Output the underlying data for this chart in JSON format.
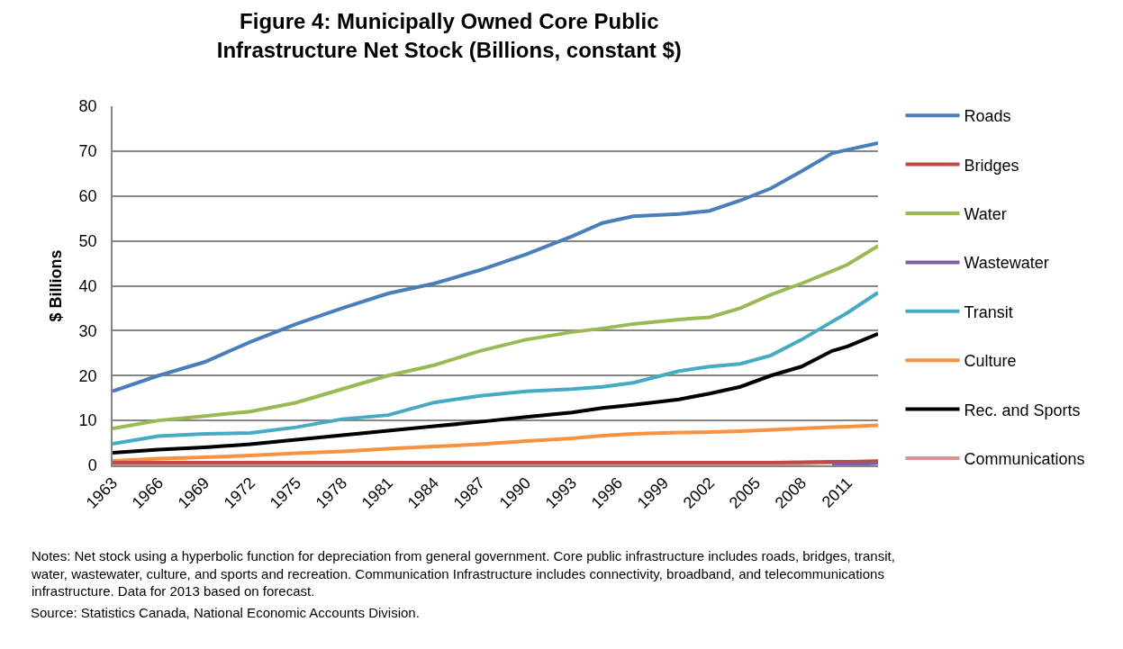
{
  "chart_data": {
    "type": "line",
    "title": "Figure 4: Municipally Owned Core Public\nInfrastructure Net Stock (Billions, constant $)",
    "ylabel": "$ Billions",
    "x": [
      1963,
      1966,
      1969,
      1972,
      1975,
      1978,
      1981,
      1984,
      1987,
      1990,
      1993,
      1995,
      1997,
      2000,
      2002,
      2004,
      2006,
      2008,
      2010,
      2011,
      2013
    ],
    "series": [
      {
        "name": "Roads",
        "color": "#4a7ebb",
        "values": [
          16.5,
          20,
          23,
          27.5,
          31.5,
          35,
          38.3,
          40.5,
          43.5,
          47,
          51,
          54,
          55.5,
          56,
          56.7,
          59,
          61.7,
          65.5,
          69.5,
          70.3,
          71.8
        ]
      },
      {
        "name": "Bridges",
        "color": "#be4b48",
        "values": [
          0.6,
          0.6,
          0.6,
          0.6,
          0.6,
          0.6,
          0.6,
          0.6,
          0.6,
          0.6,
          0.6,
          0.6,
          0.6,
          0.6,
          0.6,
          0.6,
          0.6,
          0.7,
          0.8,
          0.8,
          0.9
        ]
      },
      {
        "name": "Water",
        "color": "#98b954",
        "values": [
          8.2,
          10,
          11,
          12,
          14,
          17,
          20,
          22.3,
          25.5,
          28,
          29.7,
          30.5,
          31.5,
          32.5,
          33,
          35,
          38,
          40.5,
          43.3,
          44.7,
          48.9
        ]
      },
      {
        "name": "Wastewater",
        "color": "#7d60a0",
        "values": [
          null,
          null,
          null,
          null,
          null,
          null,
          null,
          null,
          null,
          null,
          null,
          null,
          null,
          null,
          null,
          null,
          null,
          null,
          0.1,
          0.2,
          0.5
        ]
      },
      {
        "name": "Transit",
        "color": "#46aac5",
        "values": [
          4.8,
          6.5,
          7,
          7.2,
          8.5,
          10.3,
          11.2,
          14,
          15.5,
          16.5,
          17,
          17.5,
          18.4,
          21,
          22,
          22.6,
          24.5,
          28,
          32,
          34,
          38.5
        ]
      },
      {
        "name": "Culture",
        "color": "#f69240",
        "values": [
          1,
          1.5,
          1.8,
          2.2,
          2.7,
          3.1,
          3.7,
          4.2,
          4.7,
          5.4,
          6,
          6.6,
          7,
          7.3,
          7.4,
          7.6,
          7.9,
          8.2,
          8.5,
          8.6,
          8.9
        ]
      },
      {
        "name": "Rec. and Sports",
        "color": "#000000",
        "values": [
          2.8,
          3.5,
          4,
          4.7,
          5.7,
          6.7,
          7.7,
          8.7,
          9.7,
          10.8,
          11.8,
          12.8,
          13.5,
          14.7,
          16,
          17.5,
          20,
          22,
          25.5,
          26.5,
          29.3
        ]
      },
      {
        "name": "Communications",
        "color": "#d99694",
        "values": [
          0.2,
          0.2,
          0.2,
          0.2,
          0.2,
          0.2,
          0.2,
          0.2,
          0.2,
          0.2,
          0.2,
          0.2,
          0.2,
          0.2,
          0.2,
          0.2,
          0.3,
          0.4,
          0.6,
          0.7,
          1
        ]
      }
    ],
    "xlim": [
      1963,
      2013
    ],
    "xticks": [
      1963,
      1966,
      1969,
      1972,
      1975,
      1978,
      1981,
      1984,
      1987,
      1990,
      1993,
      1996,
      1999,
      2002,
      2005,
      2008,
      2011
    ],
    "ylim": [
      0,
      80
    ],
    "yticks": [
      0,
      10,
      20,
      30,
      40,
      50,
      60,
      70,
      80
    ],
    "grid": "y",
    "legend": "right",
    "marker": "none",
    "line_style": "solid",
    "annotations": [
      "Notes: Net stock using a hyperbolic function for depreciation from general government. Core public infrastructure includes roads, bridges, transit, water, wastewater, culture, and sports and recreation. Communication Infrastructure includes connectivity, broadband, and telecommunications infrastructure. Data for 2013 based on forecast.",
      "Source: Statistics Canada, National Economic Accounts Division."
    ]
  }
}
